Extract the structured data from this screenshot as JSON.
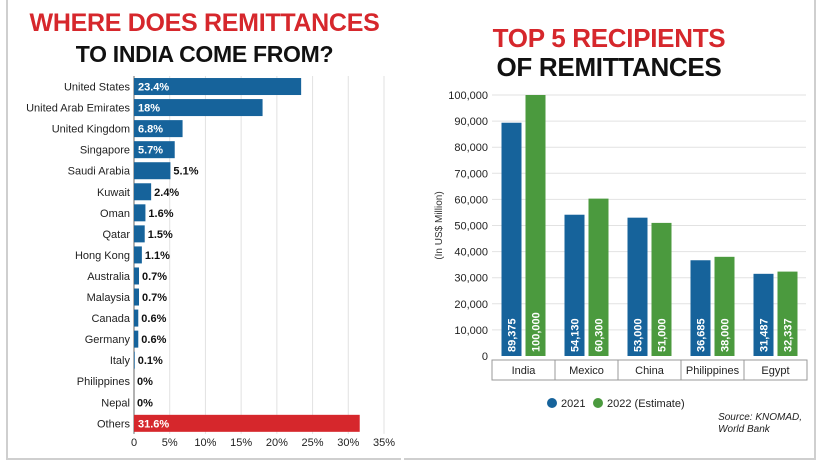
{
  "left": {
    "title_line1": "WHERE DOES REMITTANCES",
    "title_line2": "TO INDIA COME FROM?"
  },
  "right": {
    "title_line1": "TOP 5 RECIPIENTS",
    "title_line2": "OF REMITTANCES",
    "source": "Source: KNOMAD,\nWorld Bank"
  },
  "colors": {
    "blue": "#16639b",
    "green": "#4b9a3e",
    "red": "#d6272c",
    "grid": "#e2e2e2"
  },
  "chart_data": [
    {
      "type": "bar",
      "orientation": "horizontal",
      "title": "WHERE DOES REMITTANCES TO INDIA COME FROM?",
      "categories": [
        "United States",
        "United Arab Emirates",
        "United Kingdom",
        "Singapore",
        "Saudi Arabia",
        "Kuwait",
        "Oman",
        "Qatar",
        "Hong Kong",
        "Australia",
        "Malaysia",
        "Canada",
        "Germany",
        "Italy",
        "Philippines",
        "Nepal",
        "Others"
      ],
      "values": [
        23.4,
        18,
        6.8,
        5.7,
        5.1,
        2.4,
        1.6,
        1.5,
        1.1,
        0.7,
        0.7,
        0.6,
        0.6,
        0.1,
        0,
        0,
        31.6
      ],
      "labels": [
        "23.4%",
        "18%",
        "6.8%",
        "5.7%",
        "5.1%",
        "2.4%",
        "1.6%",
        "1.5%",
        "1.1%",
        "0.7%",
        "0.7%",
        "0.6%",
        "0.6%",
        "0.1%",
        "0%",
        "0%",
        "31.6%"
      ],
      "highlight": "Others",
      "xlim": [
        0,
        35
      ],
      "xticks": [
        "0",
        "5%",
        "10%",
        "15%",
        "20%",
        "25%",
        "30%",
        "35%"
      ],
      "grid": "vertical"
    },
    {
      "type": "bar",
      "title": "TOP 5 RECIPIENTS OF REMITTANCES",
      "categories": [
        "India",
        "Mexico",
        "China",
        "Philippines",
        "Egypt"
      ],
      "series": [
        {
          "name": "2021",
          "values": [
            89375,
            54130,
            53000,
            36685,
            31487
          ],
          "labels": [
            "89,375",
            "54,130",
            "53,000",
            "36,685",
            "31,487"
          ]
        },
        {
          "name": "2022 (Estimate)",
          "values": [
            100000,
            60300,
            51000,
            38000,
            32337
          ],
          "labels": [
            "100,000",
            "60,300",
            "51,000",
            "38,000",
            "32,337"
          ]
        }
      ],
      "ylabel": "(In US$ Million)",
      "ylim": [
        0,
        100000
      ],
      "yticks": [
        "0",
        "10,000",
        "20,000",
        "30,000",
        "40,000",
        "50,000",
        "60,000",
        "70,000",
        "80,000",
        "90,000",
        "100,000"
      ],
      "legend": "bottom",
      "grid": "horizontal"
    }
  ]
}
